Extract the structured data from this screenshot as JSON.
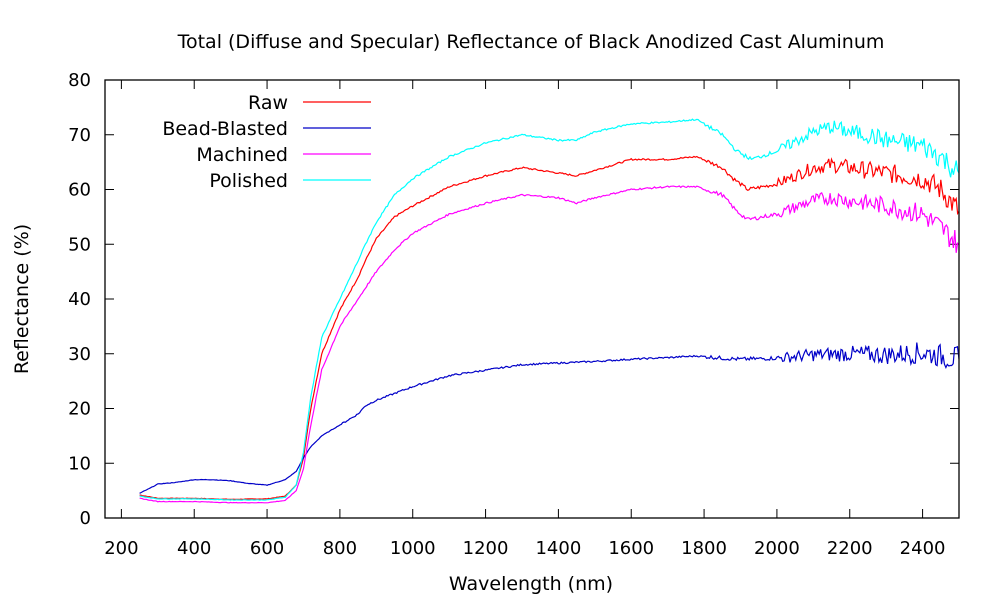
{
  "chart_data": {
    "type": "line",
    "title": "Total (Diffuse and Specular) Reflectance of Black Anodized Cast Aluminum",
    "xlabel": "Wavelength (nm)",
    "ylabel": "Reflectance (%)",
    "xlim": [
      155,
      2500
    ],
    "ylim": [
      0,
      80
    ],
    "xticks": [
      200,
      400,
      600,
      800,
      1000,
      1200,
      1400,
      1600,
      1800,
      2000,
      2200,
      2400
    ],
    "yticks": [
      0,
      10,
      20,
      30,
      40,
      50,
      60,
      70,
      80
    ],
    "xtick_labels": [
      "200",
      "400",
      "600",
      "800",
      "1000",
      "1200",
      "1400",
      "1600",
      "1800",
      "2000",
      "2200",
      "2400"
    ],
    "ytick_labels": [
      "0",
      "10",
      "20",
      "30",
      "40",
      "50",
      "60",
      "70",
      "80"
    ],
    "grid": false,
    "legend_position": "top-left",
    "series": [
      {
        "name": "Raw",
        "color": "#ff0000",
        "x": [
          250,
          300,
          400,
          500,
          600,
          650,
          680,
          700,
          720,
          750,
          800,
          850,
          870,
          900,
          950,
          1000,
          1100,
          1200,
          1300,
          1400,
          1450,
          1500,
          1600,
          1700,
          1780,
          1850,
          1880,
          1920,
          2000,
          2100,
          2150,
          2200,
          2300,
          2400,
          2450,
          2500
        ],
        "values": [
          4.2,
          3.6,
          3.6,
          3.4,
          3.5,
          4.0,
          6.0,
          11.0,
          20.0,
          30.0,
          38.0,
          44.0,
          47.0,
          51.0,
          55.0,
          57.0,
          60.5,
          62.5,
          64.0,
          63.0,
          62.5,
          63.5,
          65.5,
          65.5,
          66.0,
          64.0,
          62.0,
          60.0,
          61.0,
          64.0,
          64.5,
          64.0,
          63.0,
          62.0,
          60.0,
          56.0
        ]
      },
      {
        "name": "Bead-Blasted",
        "color": "#0000c8",
        "x": [
          250,
          280,
          300,
          350,
          400,
          450,
          500,
          550,
          600,
          650,
          680,
          700,
          720,
          750,
          800,
          850,
          870,
          900,
          1000,
          1100,
          1200,
          1300,
          1400,
          1500,
          1600,
          1700,
          1780,
          1850,
          1900,
          2000,
          2100,
          2200,
          2300,
          2400,
          2500
        ],
        "values": [
          4.5,
          5.5,
          6.2,
          6.5,
          7.0,
          7.0,
          6.8,
          6.3,
          6.0,
          7.0,
          8.5,
          11.0,
          13.0,
          15.0,
          17.0,
          19.0,
          20.5,
          21.5,
          24.0,
          26.0,
          27.0,
          28.0,
          28.3,
          28.6,
          29.0,
          29.3,
          29.6,
          29.2,
          29.0,
          29.2,
          29.8,
          30.0,
          29.8,
          30.2,
          29.0
        ]
      },
      {
        "name": "Machined",
        "color": "#ff00ff",
        "x": [
          250,
          300,
          400,
          500,
          600,
          650,
          680,
          700,
          720,
          750,
          800,
          850,
          900,
          950,
          1000,
          1100,
          1200,
          1300,
          1400,
          1450,
          1500,
          1600,
          1700,
          1780,
          1850,
          1890,
          1920,
          2000,
          2100,
          2150,
          2200,
          2300,
          2400,
          2450,
          2500
        ],
        "values": [
          3.6,
          3.0,
          3.0,
          2.8,
          2.8,
          3.2,
          5.0,
          9.0,
          17.0,
          27.0,
          35.0,
          40.0,
          45.0,
          49.0,
          52.0,
          55.5,
          57.5,
          59.0,
          58.5,
          57.5,
          58.5,
          60.0,
          60.5,
          60.5,
          59.0,
          56.0,
          54.5,
          55.5,
          58.0,
          58.5,
          58.0,
          57.0,
          55.5,
          53.0,
          50.0
        ]
      },
      {
        "name": "Polished",
        "color": "#00ffff",
        "x": [
          250,
          300,
          400,
          500,
          600,
          650,
          680,
          700,
          720,
          750,
          800,
          850,
          870,
          900,
          950,
          1000,
          1100,
          1200,
          1300,
          1400,
          1450,
          1500,
          1600,
          1700,
          1780,
          1850,
          1890,
          1930,
          2000,
          2100,
          2150,
          2200,
          2250,
          2300,
          2400,
          2450,
          2500
        ],
        "values": [
          4.0,
          3.5,
          3.5,
          3.3,
          3.3,
          3.8,
          6.0,
          12.0,
          22.0,
          33.0,
          40.0,
          47.0,
          50.0,
          54.0,
          59.0,
          62.0,
          66.0,
          68.5,
          70.0,
          69.0,
          69.0,
          70.5,
          72.0,
          72.3,
          72.8,
          70.0,
          67.0,
          65.5,
          67.0,
          70.5,
          71.5,
          70.5,
          70.0,
          69.0,
          68.0,
          66.0,
          63.0
        ]
      }
    ]
  }
}
